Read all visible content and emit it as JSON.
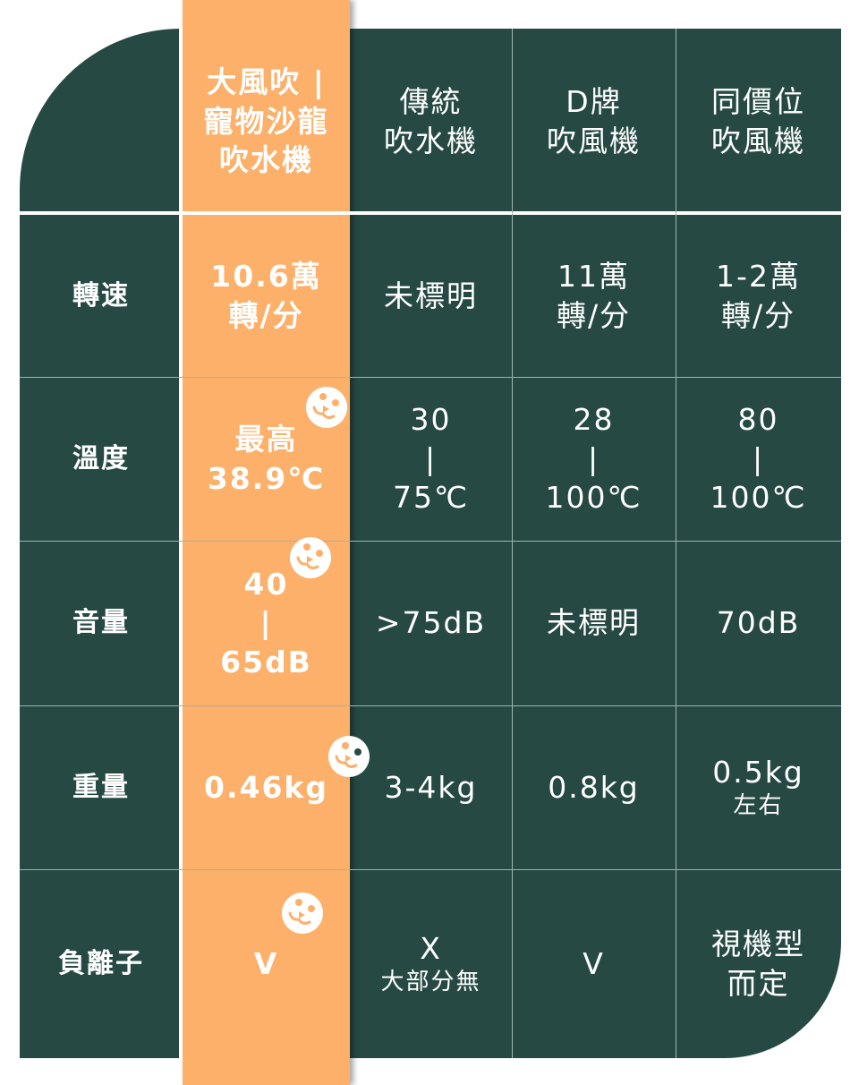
{
  "colors": {
    "table_bg": "#264a43",
    "highlight": "#fdb06a",
    "text": "#ffffff"
  },
  "header": [
    {
      "lines": [
        "大風吹 |",
        "寵物沙龍",
        "吹水機"
      ],
      "highlight": true
    },
    {
      "lines": [
        "傳統",
        "吹水機"
      ]
    },
    {
      "lines": [
        "D牌",
        "吹風機"
      ]
    },
    {
      "lines": [
        "同價位",
        "吹風機"
      ]
    }
  ],
  "rows": [
    {
      "label": "轉速",
      "cells": [
        {
          "lines": [
            "10.6萬",
            "轉/分"
          ]
        },
        {
          "lines": [
            "未標明"
          ]
        },
        {
          "lines": [
            "11萬",
            "轉/分"
          ]
        },
        {
          "lines": [
            "1-2萬",
            "轉/分"
          ]
        }
      ]
    },
    {
      "label": "溫度",
      "cells": [
        {
          "lines": [
            "最高",
            "38.9℃"
          ]
        },
        {
          "lines": [
            "30",
            "|",
            "75℃"
          ]
        },
        {
          "lines": [
            "28",
            "|",
            "100℃"
          ]
        },
        {
          "lines": [
            "80",
            "|",
            "100℃"
          ]
        }
      ]
    },
    {
      "label": "音量",
      "cells": [
        {
          "lines": [
            "40",
            "|",
            "65dB"
          ]
        },
        {
          "lines": [
            ">75dB"
          ]
        },
        {
          "lines": [
            "未標明"
          ]
        },
        {
          "lines": [
            "70dB"
          ]
        }
      ]
    },
    {
      "label": "重量",
      "cells": [
        {
          "lines": [
            "0.46kg"
          ]
        },
        {
          "lines": [
            "3-4kg"
          ]
        },
        {
          "lines": [
            "0.8kg"
          ]
        },
        {
          "lines": [
            "0.5kg"
          ],
          "sub": "左右"
        }
      ]
    },
    {
      "label": "負離子",
      "cells": [
        {
          "lines": [
            "V"
          ]
        },
        {
          "lines": [
            "X"
          ],
          "sub": "大部分無"
        },
        {
          "lines": [
            "V"
          ]
        },
        {
          "lines": [
            "視機型",
            "而定"
          ]
        }
      ]
    }
  ],
  "icons": [
    "dog-face-icon",
    "dog-face-icon",
    "dog-face-icon",
    "dog-face-icon"
  ]
}
